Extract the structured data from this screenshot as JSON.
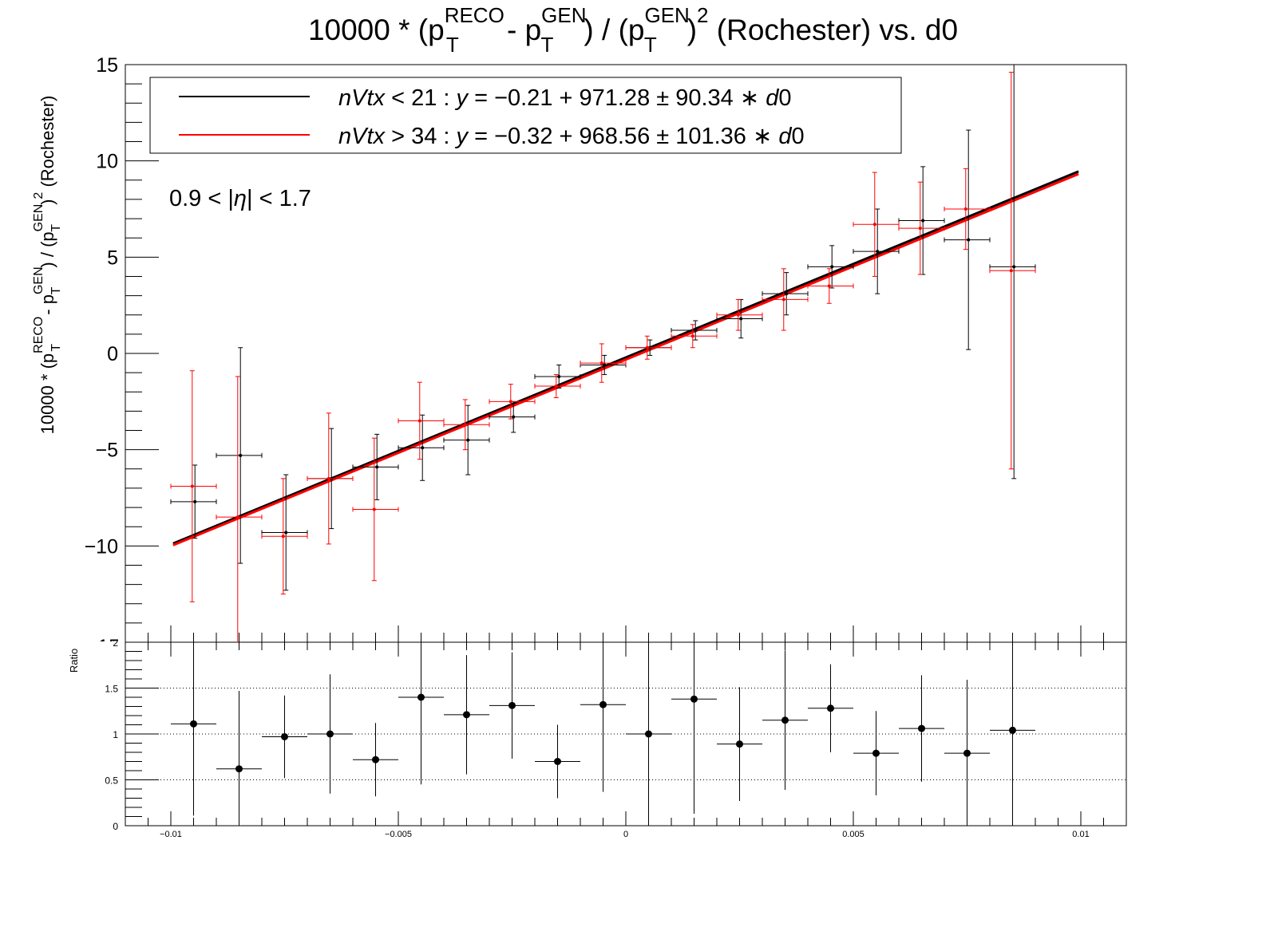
{
  "chart_data": [
    {
      "type": "scatter",
      "title_parts": {
        "a": "10000 * (p",
        "reco": "RECO",
        "t": "T",
        "b": " - p",
        "gen": "GEN",
        "c": ") / (p",
        "d": ")",
        "sq": "2",
        "e": "  (Rochester)  vs.  d0"
      },
      "ylabel_parts": {
        "a": "10000 * (p",
        "reco": "RECO",
        "t": "T",
        "b": " - p",
        "gen": "GEN",
        "c": ") / (p",
        "d": ")",
        "sq": "2",
        "e": " (Rochester)"
      },
      "annotation": {
        "a": "0.9 < |",
        "eta": "η",
        "b": "| < 1.7"
      },
      "xlim": [
        -0.011,
        0.011
      ],
      "ylim": [
        -15,
        15
      ],
      "yticks": [
        -10,
        -5,
        0,
        5,
        10,
        15
      ],
      "ytick_labels": [
        "−10",
        "−5",
        "0",
        "5",
        "10",
        "15"
      ],
      "cut_tick_label": "15",
      "legend_position": "top-left",
      "legend": [
        {
          "v1": "nVtx",
          "op": " < 21 : ",
          "v2": "y",
          "eq": " = −0.21 + 971.28 ± 90.34 ∗ ",
          "v3": "d",
          "end": "0"
        },
        {
          "v1": "nVtx",
          "op": " > 34 : ",
          "v2": "y",
          "eq": " = −0.32 + 968.56 ± 101.36 ∗ ",
          "v3": "d",
          "end": "0"
        }
      ],
      "series": [
        {
          "name": "nVtx < 21",
          "color": "#000000",
          "fit": {
            "intercept": -0.21,
            "slope": 971.28
          },
          "x": [
            -0.0095,
            -0.0085,
            -0.0075,
            -0.0065,
            -0.0055,
            -0.0045,
            -0.0035,
            -0.0025,
            -0.0015,
            -0.0005,
            0.0005,
            0.0015,
            0.0025,
            0.0035,
            0.0045,
            0.0055,
            0.0065,
            0.0075,
            0.0085
          ],
          "y": [
            -7.7,
            -5.3,
            -9.3,
            -6.5,
            -5.9,
            -4.9,
            -4.5,
            -3.3,
            -1.2,
            -0.6,
            0.3,
            1.2,
            1.8,
            3.1,
            4.5,
            5.3,
            6.9,
            5.9,
            4.5
          ],
          "yerr": [
            1.9,
            5.6,
            3.0,
            2.6,
            1.7,
            1.7,
            1.8,
            0.8,
            0.6,
            0.5,
            0.4,
            0.5,
            1.0,
            1.1,
            1.1,
            2.2,
            2.8,
            5.7,
            11.0
          ]
        },
        {
          "name": "nVtx > 34",
          "color": "#ff0000",
          "fit": {
            "intercept": -0.32,
            "slope": 968.56
          },
          "x": [
            -0.0095,
            -0.0085,
            -0.0075,
            -0.0065,
            -0.0055,
            -0.0045,
            -0.0035,
            -0.0025,
            -0.0015,
            -0.0005,
            0.0005,
            0.0015,
            0.0025,
            0.0035,
            0.0045,
            0.0055,
            0.0065,
            0.0075,
            0.0085
          ],
          "y": [
            -6.9,
            -8.5,
            -9.5,
            -6.5,
            -8.1,
            -3.5,
            -3.7,
            -2.5,
            -1.7,
            -0.5,
            0.3,
            0.9,
            2.0,
            2.8,
            3.5,
            6.7,
            6.5,
            7.5,
            4.3
          ],
          "yerr": [
            6.0,
            7.3,
            3.0,
            3.4,
            3.7,
            2.0,
            1.3,
            0.9,
            0.6,
            1.0,
            0.6,
            0.6,
            0.8,
            1.6,
            0.9,
            2.7,
            2.4,
            2.1,
            10.3
          ]
        }
      ]
    },
    {
      "type": "scatter",
      "ylabel": "Ratio",
      "xlim": [
        -0.011,
        0.011
      ],
      "ylim": [
        0,
        2
      ],
      "yticks": [
        0,
        0.5,
        1,
        1.5,
        2
      ],
      "ytick_labels": [
        "0",
        "0.5",
        "1",
        "1.5",
        "2"
      ],
      "xticks": [
        -0.01,
        -0.005,
        0,
        0.005,
        0.01
      ],
      "xtick_labels": [
        "−0.01",
        "−0.005",
        "0",
        "0.005",
        "0.01"
      ],
      "grid_y": [
        0.5,
        1,
        1.5
      ],
      "series": [
        {
          "color": "#000000",
          "x": [
            -0.0095,
            -0.0085,
            -0.0075,
            -0.0065,
            -0.0055,
            -0.0045,
            -0.0035,
            -0.0025,
            -0.0015,
            -0.0005,
            0.0005,
            0.0015,
            0.0025,
            0.0035,
            0.0045,
            0.0055,
            0.0065,
            0.0075,
            0.0085
          ],
          "y": [
            1.11,
            0.62,
            0.97,
            1.0,
            0.72,
            1.4,
            1.21,
            1.31,
            0.7,
            1.32,
            1.0,
            1.38,
            0.89,
            1.15,
            1.28,
            0.79,
            1.06,
            0.79,
            1.04
          ],
          "yerr": [
            1.0,
            0.85,
            0.45,
            0.65,
            0.4,
            0.95,
            0.65,
            0.58,
            0.4,
            0.95,
            1.0,
            1.25,
            0.62,
            0.76,
            0.48,
            0.46,
            0.58,
            0.8,
            1.0
          ]
        }
      ]
    }
  ]
}
